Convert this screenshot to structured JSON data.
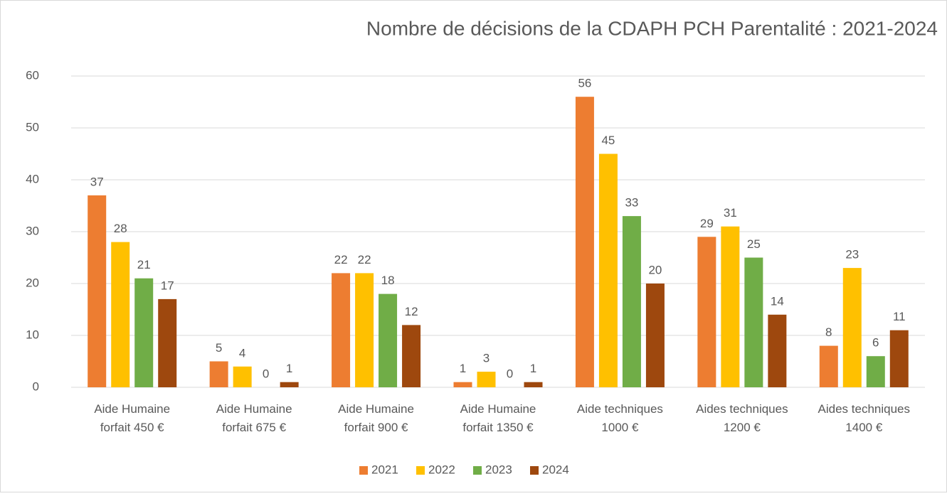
{
  "chart_data": {
    "type": "bar",
    "title": "Nombre de décisions de la CDAPH PCH Parentalité : 2021-2024",
    "categories": [
      [
        "Aide Humaine",
        "forfait 450 €"
      ],
      [
        "Aide Humaine",
        "forfait 675 €"
      ],
      [
        "Aide Humaine",
        "forfait 900 €"
      ],
      [
        "Aide Humaine",
        "forfait 1350 €"
      ],
      [
        "Aide techniques",
        "1000 €"
      ],
      [
        "Aides techniques",
        "1200 €"
      ],
      [
        "Aides techniques",
        "1400 €"
      ]
    ],
    "series": [
      {
        "name": "2021",
        "color": "#ED7D31",
        "values": [
          37,
          5,
          22,
          1,
          56,
          29,
          8
        ]
      },
      {
        "name": "2022",
        "color": "#FFC000",
        "values": [
          28,
          4,
          22,
          3,
          45,
          31,
          23
        ]
      },
      {
        "name": "2023",
        "color": "#70AD47",
        "values": [
          21,
          0,
          18,
          0,
          33,
          25,
          6
        ]
      },
      {
        "name": "2024",
        "color": "#9E480E",
        "values": [
          17,
          1,
          12,
          1,
          20,
          14,
          11
        ]
      }
    ],
    "ylim": [
      0,
      60
    ],
    "yticks": [
      0,
      10,
      20,
      30,
      40,
      50,
      60
    ],
    "grid": true,
    "legend": "bottom"
  }
}
